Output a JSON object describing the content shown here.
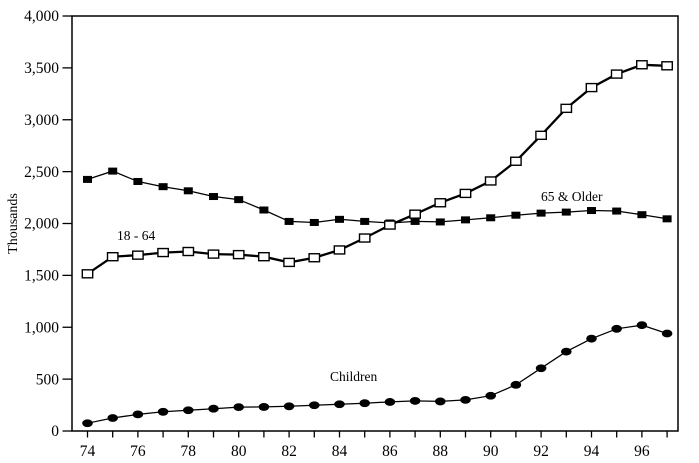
{
  "chart_data": {
    "type": "line",
    "title": "",
    "y_axis": {
      "label": "Thousands",
      "min": 0,
      "max": 4000,
      "tick_step": 500,
      "tick_labels": [
        "0",
        "500",
        "1,000",
        "1,500",
        "2,000",
        "2,500",
        "3,000",
        "3,500",
        "4,000"
      ]
    },
    "x_axis": {
      "years": [
        74,
        75,
        76,
        77,
        78,
        79,
        80,
        81,
        82,
        83,
        84,
        85,
        86,
        87,
        88,
        89,
        90,
        91,
        92,
        93,
        94,
        95,
        96,
        97
      ],
      "labeled_years": [
        74,
        76,
        78,
        80,
        82,
        84,
        86,
        88,
        90,
        92,
        94,
        96
      ]
    },
    "series": [
      {
        "id": "older",
        "name": "65 & Older",
        "marker": "filled-square",
        "line_width": "thin",
        "values": [
          2425,
          2505,
          2405,
          2355,
          2315,
          2260,
          2230,
          2130,
          2020,
          2010,
          2040,
          2020,
          2005,
          2020,
          2015,
          2035,
          2055,
          2080,
          2100,
          2110,
          2125,
          2120,
          2085,
          2045
        ]
      },
      {
        "id": "adults",
        "name": "18 - 64",
        "marker": "open-square",
        "line_width": "thick",
        "values": [
          1515,
          1680,
          1695,
          1720,
          1730,
          1705,
          1700,
          1680,
          1625,
          1670,
          1745,
          1860,
          1985,
          2090,
          2200,
          2290,
          2410,
          2600,
          2850,
          3110,
          3310,
          3440,
          3530,
          3520
        ]
      },
      {
        "id": "children",
        "name": "Children",
        "marker": "filled-circle",
        "line_width": "thin",
        "values": [
          75,
          125,
          160,
          185,
          200,
          215,
          230,
          232,
          238,
          248,
          258,
          268,
          280,
          290,
          285,
          300,
          340,
          445,
          605,
          765,
          890,
          985,
          1020,
          940
        ]
      }
    ],
    "legend_position": "inline-labels",
    "grid": "off",
    "colors": {
      "line": "#000000",
      "text": "#000000",
      "background": "#ffffff",
      "marker_open_fill": "#ffffff"
    }
  }
}
